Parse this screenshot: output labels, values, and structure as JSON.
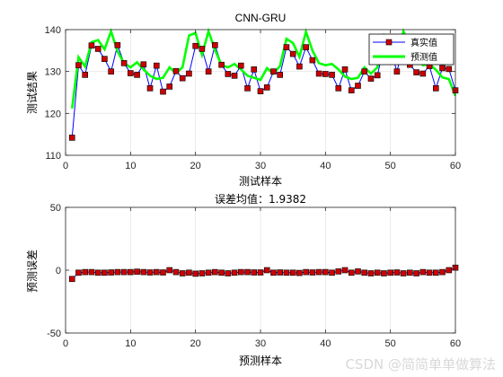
{
  "chart_data": [
    {
      "type": "line",
      "title": "CNN-GRU",
      "xlabel": "测试样本",
      "ylabel": "测试结果",
      "xlim": [
        0,
        60
      ],
      "ylim": [
        110,
        140
      ],
      "xticks": [
        0,
        10,
        20,
        30,
        40,
        50,
        60
      ],
      "yticks": [
        110,
        120,
        130,
        140
      ],
      "grid": true,
      "legend": "top-right",
      "x": [
        1,
        2,
        3,
        4,
        5,
        6,
        7,
        8,
        9,
        10,
        11,
        12,
        13,
        14,
        15,
        16,
        17,
        18,
        19,
        20,
        21,
        22,
        23,
        24,
        25,
        26,
        27,
        28,
        29,
        30,
        31,
        32,
        33,
        34,
        35,
        36,
        37,
        38,
        39,
        40,
        41,
        42,
        43,
        44,
        45,
        46,
        47,
        48,
        49,
        50,
        51,
        52,
        53,
        54,
        55,
        56,
        57,
        58,
        59,
        60
      ],
      "series": [
        {
          "name": "真实值",
          "color": "#0000ff",
          "marker_color": "#cc0000",
          "values": [
            114.2,
            131.5,
            129.2,
            136.2,
            135.4,
            133.0,
            130.0,
            136.3,
            132.0,
            129.6,
            129.2,
            131.7,
            126.0,
            131.4,
            125.2,
            126.4,
            130.1,
            128.4,
            129.5,
            136.1,
            135.4,
            130.0,
            136.3,
            131.6,
            129.4,
            129.0,
            131.4,
            126.0,
            130.5,
            125.3,
            126.2,
            130.0,
            129.2,
            135.8,
            134.2,
            131.2,
            135.8,
            132.7,
            129.5,
            129.4,
            129.2,
            126.0,
            130.5,
            125.5,
            126.6,
            130.0,
            128.3,
            129.1,
            136.0,
            135.4,
            130.0,
            136.0,
            131.6,
            129.8,
            129.5,
            131.3,
            126.0,
            130.8,
            130.6,
            125.5
          ]
        },
        {
          "name": "预测值",
          "color": "#00ff00",
          "values": [
            121.2,
            133.4,
            131.2,
            137.0,
            137.5,
            135.3,
            139.6,
            134.8,
            132.0,
            131.0,
            132.2,
            130.5,
            129.0,
            128.2,
            128.5,
            131.0,
            129.6,
            131.0,
            138.6,
            139.2,
            134.0,
            139.6,
            135.2,
            131.5,
            131.0,
            131.8,
            130.5,
            129.0,
            128.5,
            128.0,
            130.8,
            129.5,
            131.3,
            137.8,
            136.8,
            133.5,
            139.5,
            135.0,
            132.0,
            131.5,
            131.8,
            130.5,
            128.8,
            128.2,
            128.5,
            131.0,
            129.5,
            131.0,
            138.8,
            138.5,
            133.5,
            139.6,
            136.2,
            133.0,
            131.5,
            131.8,
            130.4,
            128.6,
            128.2,
            124.2
          ]
        }
      ]
    },
    {
      "type": "scatter",
      "title": "误差均值：1.9382",
      "xlabel": "预测样本",
      "ylabel": "预测误差",
      "xlim": [
        0,
        60
      ],
      "ylim": [
        -50,
        50
      ],
      "xticks": [
        0,
        10,
        20,
        30,
        40,
        50,
        60
      ],
      "yticks": [
        -50,
        0,
        50
      ],
      "grid": true,
      "x": [
        1,
        2,
        3,
        4,
        5,
        6,
        7,
        8,
        9,
        10,
        11,
        12,
        13,
        14,
        15,
        16,
        17,
        18,
        19,
        20,
        21,
        22,
        23,
        24,
        25,
        26,
        27,
        28,
        29,
        30,
        31,
        32,
        33,
        34,
        35,
        36,
        37,
        38,
        39,
        40,
        41,
        42,
        43,
        44,
        45,
        46,
        47,
        48,
        49,
        50,
        51,
        52,
        53,
        54,
        55,
        56,
        57,
        58,
        59,
        60
      ],
      "series": [
        {
          "name": "",
          "color": "#cc0000",
          "line_color": "#0000ff",
          "values": [
            -7.0,
            -2.0,
            -1.5,
            -1.5,
            -2.0,
            -2.0,
            -1.8,
            -1.5,
            -1.5,
            -1.5,
            -1.2,
            -1.5,
            -1.8,
            -1.5,
            -1.8,
            0.0,
            -1.5,
            -2.5,
            -2.0,
            -2.8,
            -2.5,
            -2.0,
            -1.5,
            -2.0,
            -2.5,
            -2.0,
            -1.5,
            -1.5,
            -1.8,
            -1.8,
            0.0,
            -2.0,
            -1.8,
            -2.0,
            -2.0,
            -2.2,
            -1.5,
            -1.8,
            -1.5,
            -1.5,
            -2.0,
            -1.0,
            0.0,
            -2.0,
            -1.0,
            -2.0,
            -2.5,
            -2.0,
            -2.5,
            -2.0,
            -1.8,
            -2.5,
            -2.0,
            -2.5,
            -1.5,
            -2.0,
            -2.0,
            -1.5,
            0.0,
            2.0
          ]
        }
      ]
    }
  ],
  "watermark": "CSDN @简简单单做算法"
}
